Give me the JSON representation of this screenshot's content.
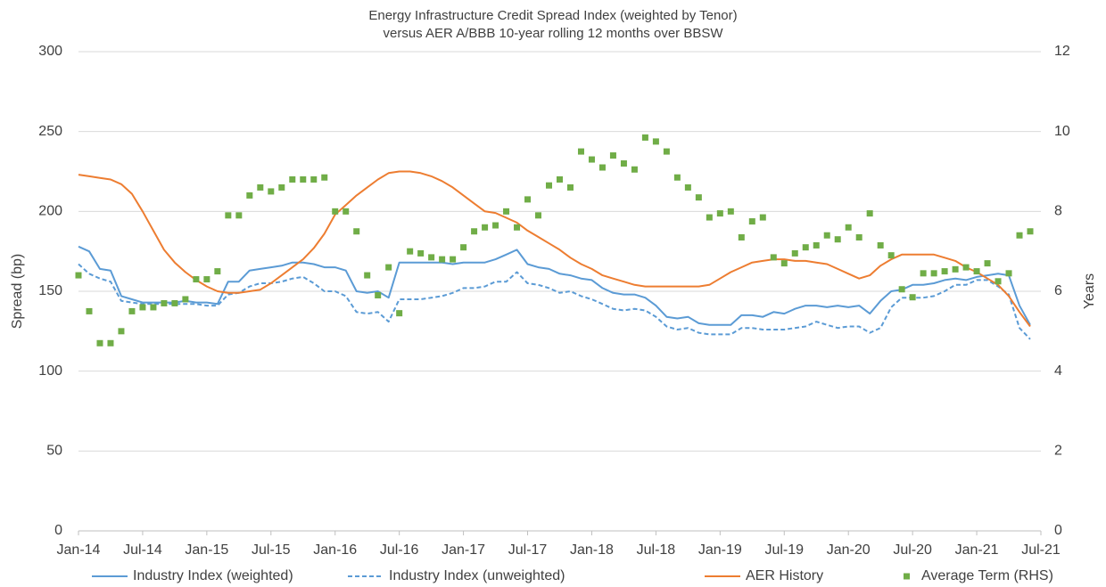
{
  "chart_data": {
    "type": "line",
    "title": [
      "Energy Infrastructure Credit Spread Index (weighted by Tenor)",
      "versus AER A/BBB 10-year rolling 12 months over BBSW"
    ],
    "ylabel": "Spread (bp)",
    "y2label": "Years",
    "x": [
      "2014-01",
      "2014-02",
      "2014-03",
      "2014-04",
      "2014-05",
      "2014-06",
      "2014-07",
      "2014-08",
      "2014-09",
      "2014-10",
      "2014-11",
      "2014-12",
      "2015-01",
      "2015-02",
      "2015-03",
      "2015-04",
      "2015-05",
      "2015-06",
      "2015-07",
      "2015-08",
      "2015-09",
      "2015-10",
      "2015-11",
      "2015-12",
      "2016-01",
      "2016-02",
      "2016-03",
      "2016-04",
      "2016-05",
      "2016-06",
      "2016-07",
      "2016-08",
      "2016-09",
      "2016-10",
      "2016-11",
      "2016-12",
      "2017-01",
      "2017-02",
      "2017-03",
      "2017-04",
      "2017-05",
      "2017-06",
      "2017-07",
      "2017-08",
      "2017-09",
      "2017-10",
      "2017-11",
      "2017-12",
      "2018-01",
      "2018-02",
      "2018-03",
      "2018-04",
      "2018-05",
      "2018-06",
      "2018-07",
      "2018-08",
      "2018-09",
      "2018-10",
      "2018-11",
      "2018-12",
      "2019-01",
      "2019-02",
      "2019-03",
      "2019-04",
      "2019-05",
      "2019-06",
      "2019-07",
      "2019-08",
      "2019-09",
      "2019-10",
      "2019-11",
      "2019-12",
      "2020-01",
      "2020-02",
      "2020-03",
      "2020-04",
      "2020-05",
      "2020-06",
      "2020-07",
      "2020-08",
      "2020-09",
      "2020-10",
      "2020-11",
      "2020-12",
      "2021-01",
      "2021-02",
      "2021-03",
      "2021-04",
      "2021-05",
      "2021-06"
    ],
    "xlim": [
      "2014-01",
      "2021-07"
    ],
    "xticks": [
      {
        "value": "2014-01",
        "label": "Jan-14"
      },
      {
        "value": "2014-07",
        "label": "Jul-14"
      },
      {
        "value": "2015-01",
        "label": "Jan-15"
      },
      {
        "value": "2015-07",
        "label": "Jul-15"
      },
      {
        "value": "2016-01",
        "label": "Jan-16"
      },
      {
        "value": "2016-07",
        "label": "Jul-16"
      },
      {
        "value": "2017-01",
        "label": "Jan-17"
      },
      {
        "value": "2017-07",
        "label": "Jul-17"
      },
      {
        "value": "2018-01",
        "label": "Jan-18"
      },
      {
        "value": "2018-07",
        "label": "Jul-18"
      },
      {
        "value": "2019-01",
        "label": "Jan-19"
      },
      {
        "value": "2019-07",
        "label": "Jul-19"
      },
      {
        "value": "2020-01",
        "label": "Jan-20"
      },
      {
        "value": "2020-07",
        "label": "Jul-20"
      },
      {
        "value": "2021-01",
        "label": "Jan-21"
      },
      {
        "value": "2021-07",
        "label": "Jul-21"
      }
    ],
    "ylim": [
      0,
      300
    ],
    "yticks": [
      0,
      50,
      100,
      150,
      200,
      250,
      300
    ],
    "y2lim": [
      0,
      12
    ],
    "y2ticks": [
      0,
      2,
      4,
      6,
      8,
      10,
      12
    ],
    "grid": true,
    "legend": "bottom",
    "series": [
      {
        "name": "Industry Index (weighted)",
        "color": "#5b9bd5",
        "style": "solid",
        "axis": "y",
        "values": [
          178,
          175,
          164,
          163,
          147,
          145,
          143,
          143,
          143,
          143,
          144,
          143,
          143,
          142,
          156,
          156,
          163,
          164,
          165,
          166,
          168,
          168,
          167,
          165,
          165,
          163,
          150,
          149,
          150,
          146,
          168,
          168,
          168,
          168,
          168,
          167,
          168,
          168,
          168,
          170,
          173,
          176,
          167,
          165,
          164,
          161,
          160,
          158,
          157,
          152,
          149,
          148,
          148,
          146,
          141,
          134,
          133,
          134,
          130,
          129,
          129,
          129,
          135,
          135,
          134,
          137,
          136,
          139,
          141,
          141,
          140,
          141,
          140,
          141,
          136,
          144,
          150,
          151,
          154,
          154,
          155,
          157,
          158,
          157,
          159,
          160,
          161,
          160,
          141,
          129
        ]
      },
      {
        "name": "Industry Index (unweighted)",
        "color": "#5b9bd5",
        "style": "dashed",
        "axis": "y",
        "values": [
          167,
          161,
          158,
          156,
          144,
          143,
          142,
          142,
          142,
          142,
          142,
          142,
          141,
          141,
          148,
          149,
          153,
          155,
          155,
          156,
          158,
          159,
          155,
          150,
          150,
          147,
          137,
          136,
          137,
          131,
          145,
          145,
          145,
          146,
          147,
          149,
          152,
          152,
          153,
          156,
          156,
          162,
          155,
          154,
          152,
          149,
          150,
          147,
          145,
          142,
          139,
          138,
          139,
          138,
          134,
          128,
          126,
          127,
          124,
          123,
          123,
          123,
          127,
          127,
          126,
          126,
          126,
          127,
          128,
          131,
          129,
          127,
          128,
          128,
          124,
          127,
          140,
          146,
          146,
          146,
          147,
          150,
          154,
          154,
          157,
          157,
          153,
          148,
          127,
          120
        ]
      },
      {
        "name": "AER History",
        "color": "#ed7d31",
        "style": "solid",
        "axis": "y",
        "values": [
          223,
          222,
          221,
          220,
          217,
          211,
          200,
          188,
          176,
          168,
          162,
          157,
          153,
          150,
          149,
          149,
          150,
          151,
          155,
          160,
          165,
          170,
          177,
          186,
          198,
          204,
          210,
          215,
          220,
          224,
          225,
          225,
          224,
          222,
          219,
          215,
          210,
          205,
          200,
          199,
          196,
          193,
          188,
          184,
          180,
          176,
          171,
          167,
          164,
          160,
          158,
          156,
          154,
          153,
          153,
          153,
          153,
          153,
          153,
          154,
          158,
          162,
          165,
          168,
          169,
          170,
          170,
          169,
          169,
          168,
          167,
          164,
          161,
          158,
          160,
          166,
          170,
          173,
          173,
          173,
          173,
          171,
          169,
          165,
          162,
          158,
          154,
          147,
          137,
          128
        ]
      },
      {
        "name": "Average Term (RHS)",
        "color": "#70ad47",
        "style": "marker",
        "axis": "y2",
        "values": [
          6.4,
          5.5,
          4.7,
          4.7,
          5.0,
          5.5,
          5.6,
          5.6,
          5.7,
          5.7,
          5.8,
          6.3,
          6.3,
          6.5,
          7.9,
          7.9,
          8.4,
          8.6,
          8.5,
          8.6,
          8.8,
          8.8,
          8.8,
          8.85,
          8.0,
          8.0,
          7.5,
          6.4,
          5.9,
          6.6,
          5.45,
          7.0,
          6.95,
          6.85,
          6.8,
          6.8,
          7.1,
          7.5,
          7.6,
          7.65,
          8.0,
          7.6,
          8.3,
          7.9,
          8.65,
          8.8,
          8.6,
          9.5,
          9.3,
          9.1,
          9.4,
          9.2,
          9.05,
          9.85,
          9.75,
          9.5,
          8.85,
          8.6,
          8.35,
          7.85,
          7.95,
          8.0,
          7.35,
          7.75,
          7.85,
          6.85,
          6.7,
          6.95,
          7.1,
          7.15,
          7.4,
          7.3,
          7.6,
          7.35,
          7.95,
          7.15,
          6.9,
          6.05,
          5.85,
          6.45,
          6.45,
          6.5,
          6.55,
          6.6,
          6.5,
          6.7,
          6.25,
          6.45,
          7.4,
          7.5
        ]
      }
    ]
  }
}
